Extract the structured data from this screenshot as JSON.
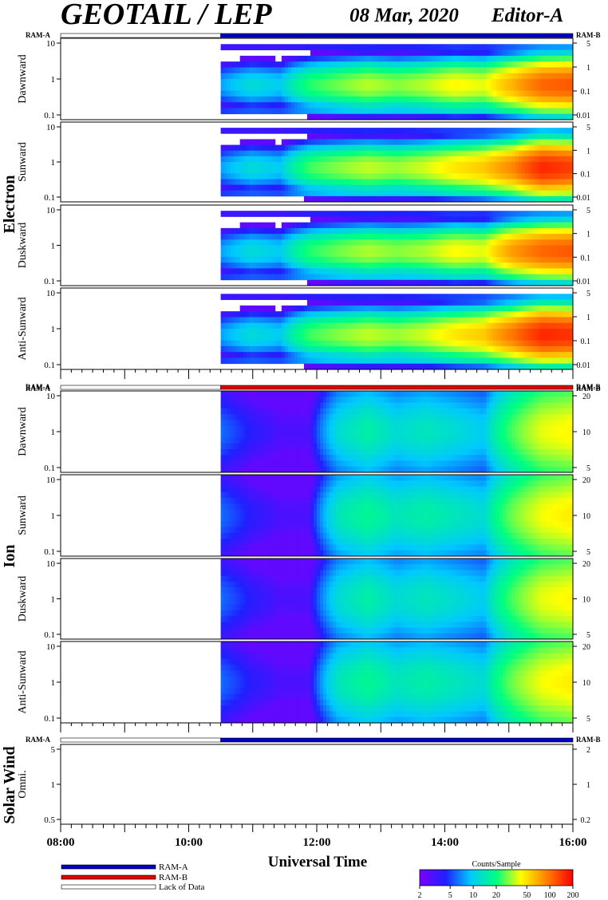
{
  "header": {
    "title": "GEOTAIL / LEP",
    "date": "08 Mar, 2020",
    "editor": "Editor-A"
  },
  "groups": [
    {
      "name": "Electron",
      "ram_left": "RAM-A",
      "ram_right": "RAM-B",
      "ram_bar": [
        {
          "from": 8.0,
          "to": 10.5,
          "mode": "Lack of Data"
        },
        {
          "from": 10.5,
          "to": 16.0,
          "mode": "RAM-A"
        }
      ],
      "panels": [
        {
          "label": "Dawnward",
          "left_ticks": [
            "10",
            "1",
            "0.1"
          ],
          "right_ticks": [
            "5",
            "1",
            "0.1",
            "0.01"
          ]
        },
        {
          "label": "Sunward",
          "left_ticks": [
            "10",
            "1",
            "0.1"
          ],
          "right_ticks": [
            "5",
            "1",
            "0.1",
            "0.01"
          ]
        },
        {
          "label": "Duskward",
          "left_ticks": [
            "10",
            "1",
            "0.1"
          ],
          "right_ticks": [
            "5",
            "1",
            "0.1",
            "0.01"
          ]
        },
        {
          "label": "Anti-Sunward",
          "left_ticks": [
            "10",
            "1",
            "0.1"
          ],
          "right_ticks": [
            "5",
            "1",
            "0.1",
            "0.01"
          ]
        }
      ]
    },
    {
      "name": "Ion",
      "ram_left": "RAM-A",
      "ram_right": "RAM-B",
      "ram_bar": [
        {
          "from": 8.0,
          "to": 10.5,
          "mode": "Lack of Data"
        },
        {
          "from": 10.5,
          "to": 16.0,
          "mode": "RAM-B"
        }
      ],
      "panels": [
        {
          "label": "Dawnward",
          "left_ticks": [
            "10",
            "1",
            "0.1"
          ],
          "right_ticks": [
            "20",
            "10",
            "5"
          ]
        },
        {
          "label": "Sunward",
          "left_ticks": [
            "10",
            "1",
            "0.1"
          ],
          "right_ticks": [
            "20",
            "10",
            "5"
          ]
        },
        {
          "label": "Duskward",
          "left_ticks": [
            "10",
            "1",
            "0.1"
          ],
          "right_ticks": [
            "20",
            "10",
            "5"
          ]
        },
        {
          "label": "Anti-Sunward",
          "left_ticks": [
            "10",
            "1",
            "0.1"
          ],
          "right_ticks": [
            "20",
            "10",
            "5"
          ]
        }
      ]
    },
    {
      "name": "Solar Wind",
      "ram_left": "RAM-A",
      "ram_right": "RAM-B",
      "ram_bar": [
        {
          "from": 8.0,
          "to": 10.5,
          "mode": "Lack of Data"
        },
        {
          "from": 10.5,
          "to": 16.0,
          "mode": "RAM-A"
        }
      ],
      "panels": [
        {
          "label": "Omni.",
          "left_ticks": [
            "5",
            "1",
            "0.5"
          ],
          "right_ticks": [
            "2",
            "1",
            "0.2"
          ]
        }
      ]
    }
  ],
  "xaxis": {
    "title": "Universal Time",
    "tick_labels": [
      "08:00",
      "10:00",
      "12:00",
      "14:00",
      "16:00"
    ]
  },
  "legend": {
    "items": [
      {
        "label": "RAM-A",
        "color": "#0000c8"
      },
      {
        "label": "RAM-B",
        "color": "#e00000"
      },
      {
        "label": "Lack of Data",
        "color": "#ffffff"
      }
    ]
  },
  "colorbar": {
    "title": "Counts/Sample",
    "ticks": [
      "2",
      "5",
      "10",
      "20",
      "50",
      "100",
      "200"
    ]
  },
  "chart_data": {
    "type": "heatmap",
    "title": "GEOTAIL / LEP",
    "xlabel": "Universal Time",
    "xlim": [
      "08:00",
      "16:00"
    ],
    "x_hours": [
      8,
      16
    ],
    "data_start": "10:30",
    "y_scale": "log",
    "color_scale": "log",
    "color_range": [
      2,
      200
    ],
    "color_label": "Counts/Sample",
    "colormap": [
      "#7b00ff",
      "#2020ff",
      "#00c8ff",
      "#00ff80",
      "#ffff00",
      "#ff8000",
      "#ff0000"
    ],
    "series": [
      {
        "name": "Electron Dawnward",
        "ylim": [
          0.08,
          40
        ],
        "profile": [
          8,
          12,
          10,
          22,
          28,
          35,
          30,
          35,
          45,
          40,
          70,
          110,
          120
        ]
      },
      {
        "name": "Electron Sunward",
        "ylim": [
          0.08,
          40
        ],
        "profile": [
          8,
          12,
          10,
          24,
          30,
          36,
          32,
          38,
          50,
          60,
          90,
          160,
          140
        ]
      },
      {
        "name": "Electron Duskward",
        "ylim": [
          0.08,
          40
        ],
        "profile": [
          8,
          12,
          10,
          22,
          28,
          34,
          30,
          34,
          44,
          40,
          80,
          110,
          120
        ]
      },
      {
        "name": "Electron Anti-Sunward",
        "ylim": [
          0.08,
          40
        ],
        "profile": [
          8,
          12,
          10,
          24,
          30,
          36,
          32,
          38,
          50,
          60,
          100,
          160,
          150
        ]
      },
      {
        "name": "Ion Dawnward",
        "ylim": [
          0.08,
          40
        ],
        "profile": [
          6,
          4,
          3,
          3,
          12,
          16,
          12,
          14,
          12,
          10,
          25,
          40,
          45
        ]
      },
      {
        "name": "Ion Sunward",
        "ylim": [
          0.08,
          40
        ],
        "profile": [
          6,
          4,
          3,
          3,
          14,
          18,
          14,
          16,
          14,
          12,
          28,
          42,
          48
        ]
      },
      {
        "name": "Ion Duskward",
        "ylim": [
          0.08,
          40
        ],
        "profile": [
          6,
          4,
          3,
          3,
          12,
          16,
          12,
          14,
          12,
          10,
          25,
          40,
          45
        ]
      },
      {
        "name": "Ion Anti-Sunward",
        "ylim": [
          0.08,
          40
        ],
        "profile": [
          6,
          4,
          3,
          3,
          14,
          18,
          14,
          16,
          14,
          12,
          28,
          42,
          48
        ]
      },
      {
        "name": "Solar Wind Omni.",
        "ylim": [
          0.3,
          8
        ],
        "profile": [
          0,
          0,
          0,
          0,
          0,
          0,
          0,
          0,
          0,
          0,
          0,
          0,
          0
        ]
      }
    ]
  }
}
